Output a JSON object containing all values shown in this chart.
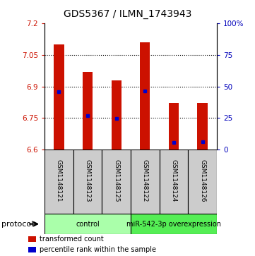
{
  "title": "GDS5367 / ILMN_1743943",
  "samples": [
    "GSM1148121",
    "GSM1148123",
    "GSM1148125",
    "GSM1148122",
    "GSM1148124",
    "GSM1148126"
  ],
  "bar_bottoms": [
    6.6,
    6.6,
    6.6,
    6.6,
    6.6,
    6.6
  ],
  "bar_tops": [
    7.1,
    6.97,
    6.93,
    7.11,
    6.82,
    6.82
  ],
  "blue_markers": [
    6.875,
    6.762,
    6.747,
    6.878,
    6.636,
    6.638
  ],
  "ylim": [
    6.6,
    7.2
  ],
  "yticks_left": [
    6.6,
    6.75,
    6.9,
    7.05,
    7.2
  ],
  "yticks_right": [
    0,
    25,
    50,
    75,
    100
  ],
  "bar_color": "#cc1100",
  "blue_color": "#0000cc",
  "groups": [
    {
      "label": "control",
      "start": 0,
      "end": 3,
      "color": "#aaffaa"
    },
    {
      "label": "miR-542-3p overexpression",
      "start": 3,
      "end": 6,
      "color": "#55ee55"
    }
  ],
  "protocol_label": "protocol",
  "legend_items": [
    {
      "color": "#cc1100",
      "label": "transformed count"
    },
    {
      "color": "#0000cc",
      "label": "percentile rank within the sample"
    }
  ],
  "bar_width": 0.35,
  "title_fontsize": 10,
  "tick_label_color_left": "#cc1100",
  "tick_label_color_right": "#0000bb",
  "grid_lines": [
    7.05,
    6.9,
    6.75
  ],
  "sample_cell_color": "#cccccc",
  "chart_bg_color": "#ffffff"
}
